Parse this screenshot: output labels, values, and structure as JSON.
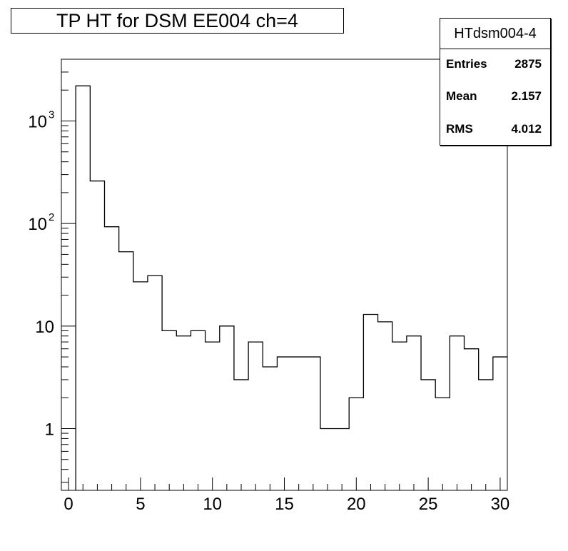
{
  "title": "TP HT for DSM EE004 ch=4",
  "stats": {
    "name": "HTdsm004-4",
    "rows": [
      {
        "label": "Entries",
        "value": "2875"
      },
      {
        "label": "Mean",
        "value": "2.157"
      },
      {
        "label": "RMS",
        "value": "4.012"
      }
    ]
  },
  "chart_data": {
    "type": "histogram",
    "title": "TP HT for DSM EE004 ch=4",
    "xlabel": "",
    "ylabel": "",
    "x_range": [
      -0.5,
      30.5
    ],
    "y_scale": "log",
    "y_range": [
      0.25,
      4000
    ],
    "bin_edges": [
      0.5,
      1.5,
      2.5,
      3.5,
      4.5,
      5.5,
      6.5,
      7.5,
      8.5,
      9.5,
      10.5,
      11.5,
      12.5,
      13.5,
      14.5,
      15.5,
      16.5,
      17.5,
      18.5,
      19.5,
      20.5,
      21.5,
      22.5,
      23.5,
      24.5,
      25.5,
      26.5,
      27.5,
      28.5,
      29.5,
      30.5
    ],
    "bin_values": [
      2200,
      260,
      93,
      53,
      27,
      31,
      9,
      8,
      9,
      7,
      10,
      3,
      7,
      4,
      5,
      5,
      5,
      1,
      1,
      2,
      13,
      11,
      7,
      8,
      3,
      2,
      8,
      6,
      3,
      5
    ],
    "x_ticks": [
      "0",
      "5",
      "10",
      "15",
      "20",
      "25",
      "30"
    ],
    "y_ticks": [
      {
        "value": 1,
        "label": "1"
      },
      {
        "value": 10,
        "label": "10"
      },
      {
        "value": 100,
        "label": "10",
        "exp": "2"
      },
      {
        "value": 1000,
        "label": "10",
        "exp": "3"
      }
    ]
  }
}
